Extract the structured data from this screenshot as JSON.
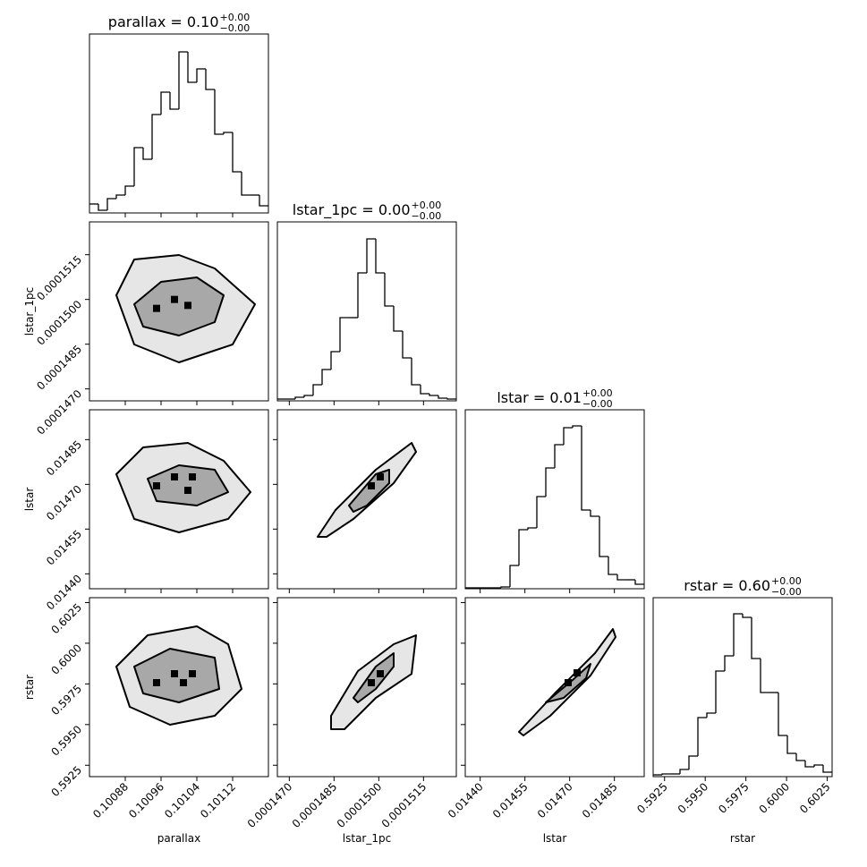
{
  "chart_data": {
    "type": "corner",
    "params": [
      {
        "name": "parallax",
        "title": "parallax = 0.10",
        "title_upper": "+0.00",
        "title_lower": "−0.00",
        "lim": [
          0.1008,
          0.1012
        ],
        "ticks": [
          0.10088,
          0.10096,
          0.10104,
          0.10112
        ],
        "bins": [
          0.1008,
          0.10082,
          0.10084,
          0.10086,
          0.10088,
          0.1009,
          0.10092,
          0.10094,
          0.10096,
          0.10098,
          0.101,
          0.10102,
          0.10104,
          0.10106,
          0.10108,
          0.1011,
          0.10112,
          0.10114,
          0.10116,
          0.10118,
          0.1012
        ],
        "counts": [
          10,
          3,
          16,
          20,
          30,
          73,
          60,
          110,
          135,
          116,
          180,
          146,
          161,
          138,
          88,
          90,
          46,
          20,
          20,
          8
        ],
        "hist_ylim": [
          0,
          200
        ]
      },
      {
        "name": "lstar_1pc",
        "title": "lstar_1pc = 0.00",
        "title_upper": "+0.00",
        "title_lower": "−0.00",
        "lim": [
          0.0001466,
          0.0001526
        ],
        "ticks": [
          {
            "value": 0.000147,
            "label": "0.0001470"
          },
          0.0001485,
          {
            "value": 0.00015,
            "label": "0.0001500"
          },
          0.0001515
        ],
        "bins": [
          0.0001466,
          0.0001469,
          0.0001472,
          0.0001475,
          0.0001478,
          0.0001481,
          0.0001484,
          0.0001487,
          0.000149,
          0.0001493,
          0.0001496,
          0.0001499,
          0.0001502,
          0.0001505,
          0.0001508,
          0.0001511,
          0.0001514,
          0.0001517,
          0.000152,
          0.0001523,
          0.0001526
        ],
        "counts": [
          2,
          2,
          4,
          6,
          18,
          35,
          55,
          93,
          93,
          143,
          181,
          143,
          106,
          78,
          48,
          18,
          8,
          6,
          3,
          2
        ],
        "hist_ylim": [
          0,
          200
        ]
      },
      {
        "name": "lstar",
        "title": "lstar = 0.01",
        "title_upper": "+0.00",
        "title_lower": "−0.00",
        "lim": [
          0.01435,
          0.01495
        ],
        "ticks": [
          {
            "value": 0.0144,
            "label": "0.01440"
          },
          0.01455,
          {
            "value": 0.0147,
            "label": "0.01470"
          },
          0.01485
        ],
        "bins": [
          0.01435,
          0.01438,
          0.01441,
          0.01444,
          0.01447,
          0.0145,
          0.01453,
          0.01456,
          0.01459,
          0.01462,
          0.01465,
          0.01468,
          0.01471,
          0.01474,
          0.01477,
          0.0148,
          0.01483,
          0.01486,
          0.01489,
          0.01492,
          0.01495
        ],
        "counts": [
          1,
          1,
          1,
          1,
          2,
          26,
          66,
          68,
          103,
          135,
          161,
          180,
          182,
          88,
          81,
          36,
          16,
          10,
          10,
          5
        ],
        "hist_ylim": [
          0,
          200
        ]
      },
      {
        "name": "rstar",
        "title": "rstar = 0.60",
        "title_upper": "+0.00",
        "title_lower": "−0.00",
        "lim": [
          0.5918,
          0.6028
        ],
        "ticks": [
          0.5925,
          {
            "value": 0.595,
            "label": "0.5950"
          },
          0.5975,
          {
            "value": 0.6,
            "label": "0.6000"
          },
          0.6025
        ],
        "bins": [
          0.5918,
          0.59235,
          0.5929,
          0.59345,
          0.594,
          0.59455,
          0.5951,
          0.59565,
          0.5962,
          0.59675,
          0.5973,
          0.59785,
          0.5984,
          0.59895,
          0.5995,
          0.60005,
          0.6006,
          0.60115,
          0.6017,
          0.60225,
          0.6028
        ],
        "counts": [
          2,
          3,
          3,
          8,
          23,
          66,
          71,
          118,
          135,
          182,
          178,
          132,
          94,
          94,
          46,
          26,
          18,
          11,
          13,
          5
        ],
        "hist_ylim": [
          0,
          200
        ]
      }
    ],
    "panels": [
      {
        "contours": [
          {
            "x": [
              0.10086,
              0.1009,
              0.101,
              0.10108,
              0.10117,
              0.10112,
              0.101,
              0.1009
            ],
            "y": [
              0.00015014,
              0.00015134,
              0.00015149,
              0.00015104,
              0.00014984,
              0.00014849,
              0.00014789,
              0.00014849
            ]
          },
          {
            "x": [
              0.1009,
              0.10096,
              0.10104,
              0.1011,
              0.10108,
              0.101,
              0.10092
            ],
            "y": [
              0.00014984,
              0.00015059,
              0.00015074,
              0.00015014,
              0.00014924,
              0.00014879,
              0.00014909
            ]
          }
        ],
        "points": {
          "x": [
            0.10099,
            0.10102,
            0.10095
          ],
          "y": [
            0.00015,
            0.0001498,
            0.0001497
          ]
        }
      },
      {
        "contours": [
          {
            "x": [
              0.10086,
              0.10092,
              0.10102,
              0.1011,
              0.10116,
              0.10111,
              0.101,
              0.1009
            ],
            "y": [
              0.014734,
              0.014824,
              0.014839,
              0.014779,
              0.014674,
              0.014584,
              0.014539,
              0.014584
            ]
          },
          {
            "x": [
              0.10093,
              0.101,
              0.10108,
              0.10111,
              0.10104,
              0.10095
            ],
            "y": [
              0.014719,
              0.014764,
              0.014749,
              0.014674,
              0.014629,
              0.014644
            ]
          }
        ],
        "points": {
          "x": [
            0.10099,
            0.10103,
            0.10095,
            0.10102
          ],
          "y": [
            0.014725,
            0.014725,
            0.014695,
            0.01468
          ]
        }
      },
      {
        "contours": [
          {
            "x": [
              0.00014795,
              0.00014855,
              0.0001499,
              0.0001511,
              0.00015125,
              0.0001505,
              0.00014915,
              0.00014825
            ],
            "y": [
              0.014524,
              0.014614,
              0.014749,
              0.014839,
              0.014809,
              0.014704,
              0.014584,
              0.014524
            ]
          },
          {
            "x": [
              0.000149,
              0.0001499,
              0.00015035,
              0.00015035,
              0.0001496,
              0.00014915
            ],
            "y": [
              0.014629,
              0.014734,
              0.014749,
              0.014704,
              0.014629,
              0.014608
            ]
          }
        ],
        "points": {
          "x": [
            0.00014975,
            0.00015005
          ],
          "y": [
            0.014695,
            0.014725
          ]
        }
      },
      {
        "contours": [
          {
            "x": [
              0.10086,
              0.10093,
              0.10104,
              0.10111,
              0.10114,
              0.10108,
              0.10098,
              0.10089
            ],
            "y": [
              0.598565,
              0.60049,
              0.60104,
              0.59994,
              0.59719,
              0.59554,
              0.59499,
              0.59609
            ]
          },
          {
            "x": [
              0.1009,
              0.10098,
              0.10108,
              0.10109,
              0.101,
              0.10092
            ],
            "y": [
              0.598565,
              0.599665,
              0.599115,
              0.59719,
              0.596365,
              0.596915
            ]
          }
        ],
        "points": {
          "x": [
            0.10095,
            0.10099,
            0.10103,
            0.10101
          ],
          "y": [
            0.597575,
            0.598125,
            0.598125,
            0.597575
          ]
        }
      },
      {
        "contours": [
          {
            "x": [
              0.0001484,
              0.0001493,
              0.0001505,
              0.00015125,
              0.0001511,
              0.0001499,
              0.00014885,
              0.0001484
            ],
            "y": [
              0.59554,
              0.59829,
              0.59994,
              0.60049,
              0.598115,
              0.59664,
              0.594715,
              0.594715
            ]
          },
          {
            "x": [
              0.00014915,
              0.0001499,
              0.0001505,
              0.0001505,
              0.0001499,
              0.0001493
            ],
            "y": [
              0.59664,
              0.598565,
              0.59939,
              0.598565,
              0.59719,
              0.596365
            ]
          }
        ],
        "points": {
          "x": [
            0.00014975,
            0.00015005
          ],
          "y": [
            0.597575,
            0.598125
          ]
        }
      },
      {
        "contours": [
          {
            "x": [
              0.01453,
              0.01465,
              0.014785,
              0.014845,
              0.014854,
              0.01477,
              0.014635,
              0.014545
            ],
            "y": [
              0.59455,
              0.596915,
              0.59939,
              0.600875,
              0.60038,
              0.598015,
              0.59554,
              0.59433
            ]
          },
          {
            "x": [
              0.01462,
              0.01471,
              0.01477,
              0.014755,
              0.01468
            ],
            "y": [
              0.596365,
              0.59774,
              0.59873,
              0.59785,
              0.59664
            ]
          }
        ],
        "points": {
          "x": [
            0.014695,
            0.014725
          ],
          "y": [
            0.597575,
            0.59818
          ]
        }
      }
    ]
  }
}
